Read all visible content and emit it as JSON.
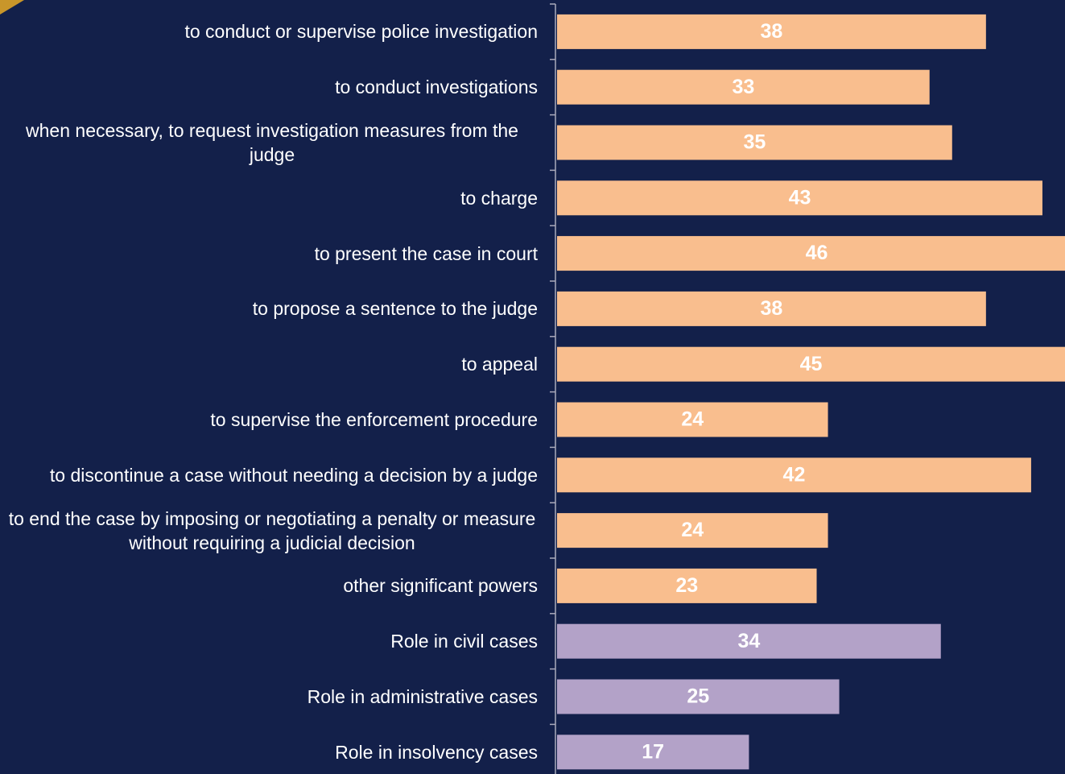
{
  "chart_data": {
    "type": "hbar",
    "categories": [
      "to conduct or supervise police investigation",
      "to conduct investigations",
      "when necessary, to request investigation measures from the judge",
      "to charge",
      "to present the case in  court",
      "to propose a sentence to the judge",
      "to appeal",
      "to supervise the enforcement procedure",
      "to discontinue a case without needing a decision by a judge",
      "to end the case by imposing or negotiating a penalty or measure without requiring a judicial decision",
      "other significant powers",
      "Role in civil cases",
      "Role in administrative cases",
      "Role in insolvency cases"
    ],
    "values": [
      38,
      33,
      35,
      43,
      46,
      38,
      45,
      24,
      42,
      24,
      23,
      34,
      25,
      17
    ],
    "colors": [
      "#f9be8e",
      "#f9be8e",
      "#f9be8e",
      "#f9be8e",
      "#f9be8e",
      "#f9be8e",
      "#f9be8e",
      "#f9be8e",
      "#f9be8e",
      "#f9be8e",
      "#f9be8e",
      "#b3a2c8",
      "#b3a2c8",
      "#b3a2c8"
    ],
    "xlim": [
      0,
      45
    ]
  }
}
